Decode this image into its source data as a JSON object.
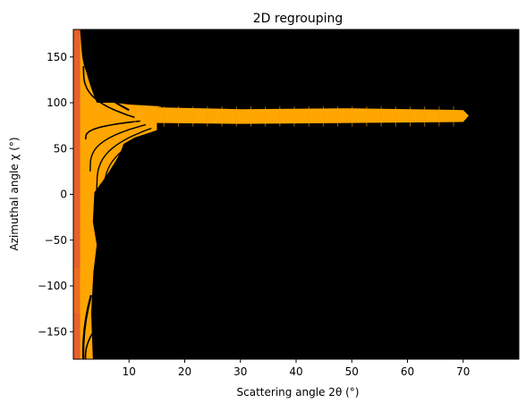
{
  "chart_data": {
    "type": "heatmap",
    "title": "2D regrouping",
    "xlabel": "Scattering angle 2θ (°)",
    "ylabel": "Azimuthal angle χ (°)",
    "xlim": [
      0,
      80
    ],
    "ylim": [
      -180,
      180
    ],
    "x_ticks": [
      10,
      20,
      30,
      40,
      50,
      60,
      70
    ],
    "y_ticks": [
      -150,
      -100,
      -50,
      0,
      50,
      100,
      150
    ],
    "grid": false,
    "legend": "none",
    "colormap": "inferno-like",
    "colors": {
      "background": "#000000",
      "intensity_low": "#e8602a",
      "intensity_high": "#ffa600"
    },
    "regions": [
      {
        "description": "narrow high-intensity band near chi 90",
        "chi_band": [
          [
            15,
            78,
            95
          ],
          [
            30,
            77,
            93
          ],
          [
            50,
            78,
            94
          ],
          [
            70,
            79,
            92
          ]
        ]
      }
    ]
  }
}
